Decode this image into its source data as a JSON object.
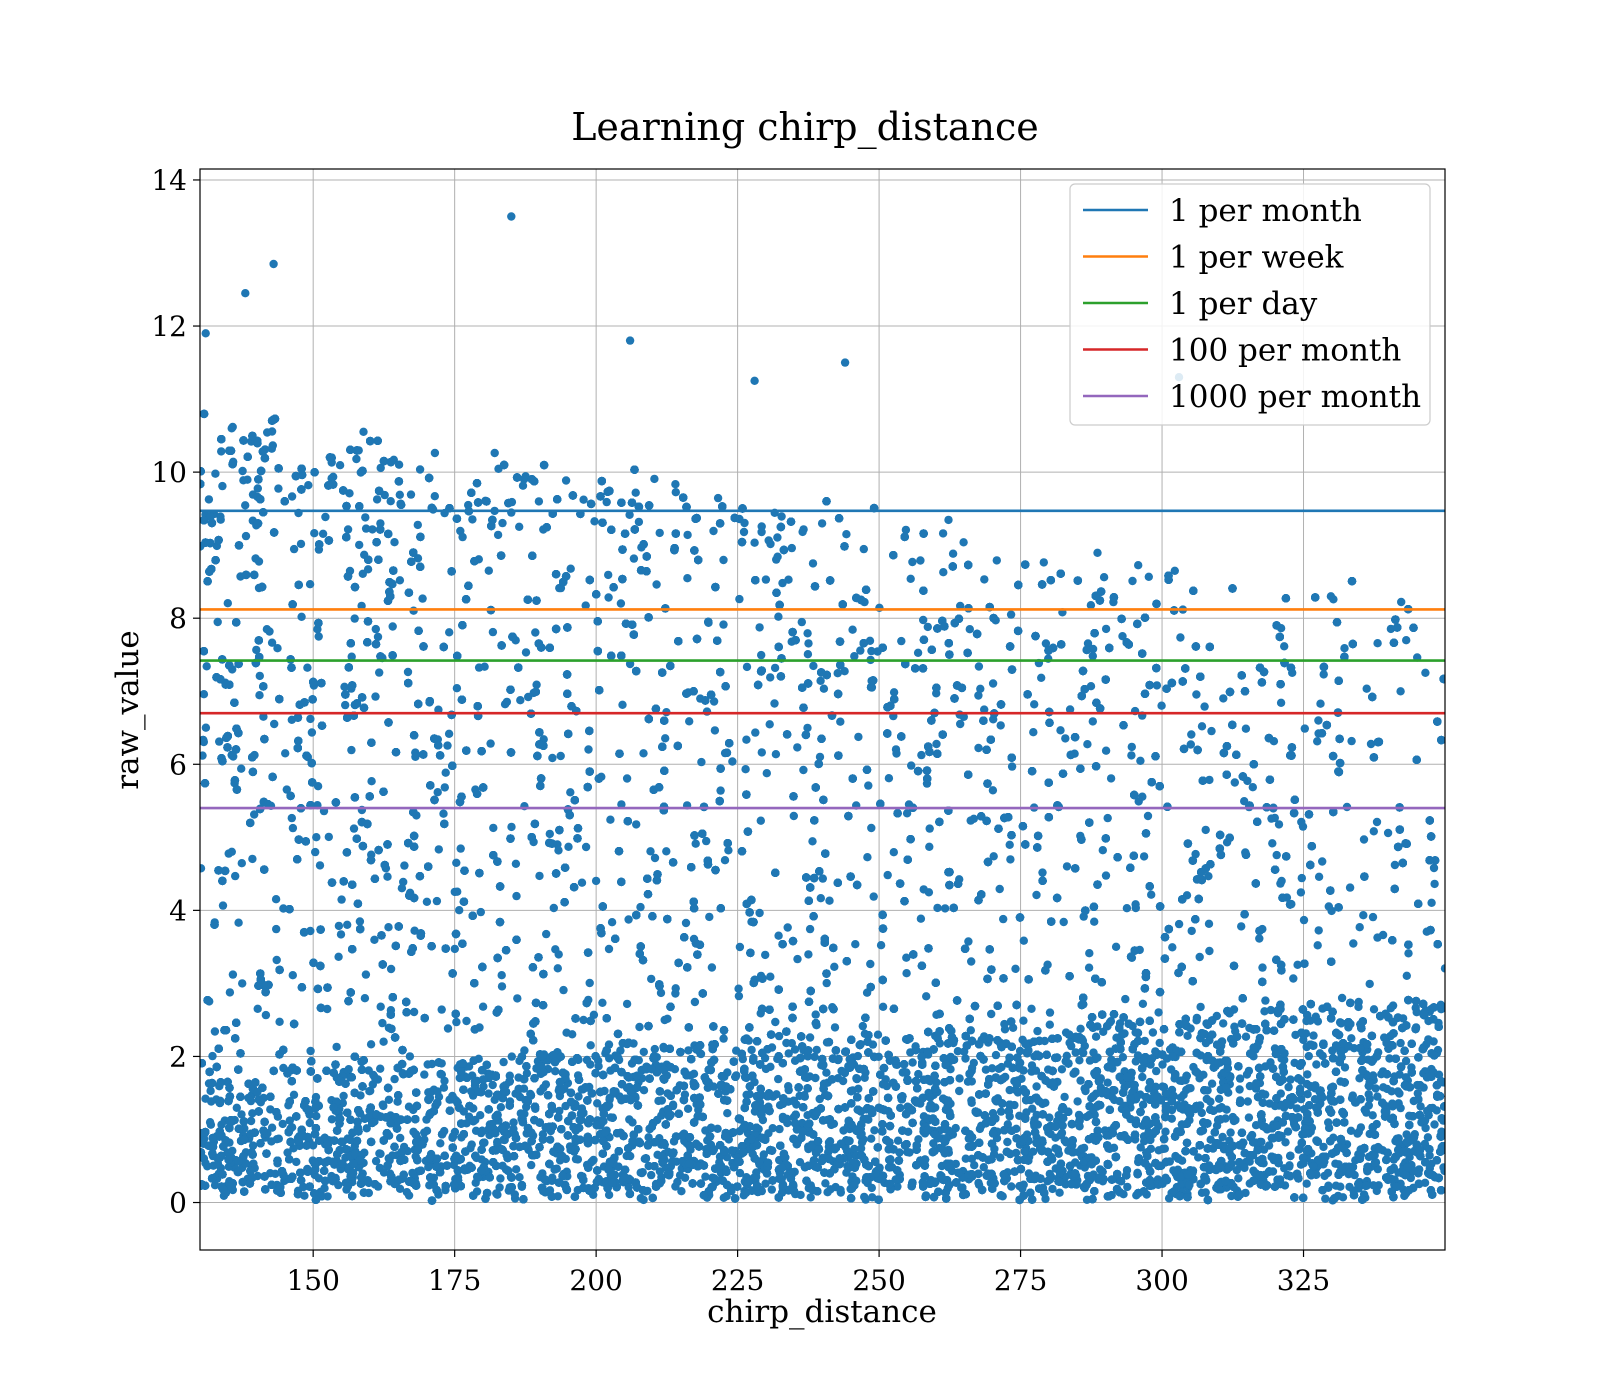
{
  "chart_data": {
    "type": "scatter",
    "title": "Learning chirp_distance",
    "xlabel": "chirp_distance",
    "ylabel": "raw_value",
    "xlim": [
      130,
      350
    ],
    "ylim": [
      -0.65,
      14.15
    ],
    "x_ticks": [
      150,
      175,
      200,
      225,
      250,
      275,
      300,
      325
    ],
    "y_ticks": [
      0,
      2,
      4,
      6,
      8,
      10,
      12,
      14
    ],
    "grid": true,
    "legend_position": "top-right",
    "scatter_color": "#1f77b4",
    "scatter_description": "dense cloud of points; density high near 0-2, decreasing toward 10; upper envelope falls from about 11 at x=130 to about 8.5 at x=350",
    "outliers": [
      {
        "x": 185,
        "y": 13.5
      },
      {
        "x": 143,
        "y": 12.85
      },
      {
        "x": 138,
        "y": 12.45
      },
      {
        "x": 131,
        "y": 11.9
      },
      {
        "x": 206,
        "y": 11.8
      },
      {
        "x": 244,
        "y": 11.5
      },
      {
        "x": 303,
        "y": 11.3
      },
      {
        "x": 228,
        "y": 11.25
      }
    ],
    "series": [
      {
        "name": "1 per month",
        "type": "hline",
        "y": 9.47,
        "color": "#1f77b4"
      },
      {
        "name": "1 per week",
        "type": "hline",
        "y": 8.12,
        "color": "#ff7f0e"
      },
      {
        "name": "1 per day",
        "type": "hline",
        "y": 7.42,
        "color": "#2ca02c"
      },
      {
        "name": "100 per month",
        "type": "hline",
        "y": 6.7,
        "color": "#d62728"
      },
      {
        "name": "1000 per month",
        "type": "hline",
        "y": 5.4,
        "color": "#9467bd"
      }
    ]
  }
}
